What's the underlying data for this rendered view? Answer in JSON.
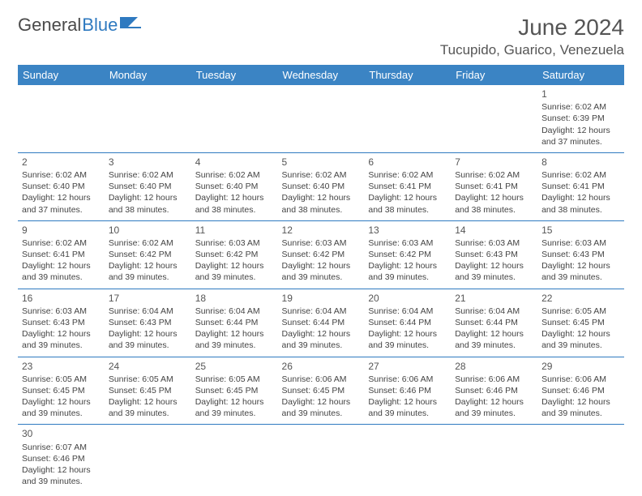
{
  "brand": {
    "name1": "General",
    "name2": "Blue"
  },
  "header": {
    "title": "June 2024",
    "location": "Tucupido, Guarico, Venezuela"
  },
  "colors": {
    "headerBg": "#3b84c4",
    "rule": "#2f7ac0",
    "text": "#444"
  },
  "daysOfWeek": [
    "Sunday",
    "Monday",
    "Tuesday",
    "Wednesday",
    "Thursday",
    "Friday",
    "Saturday"
  ],
  "startOffset": 6,
  "days": [
    {
      "n": 1,
      "sr": "6:02 AM",
      "ss": "6:39 PM",
      "dl": "12 hours and 37 minutes."
    },
    {
      "n": 2,
      "sr": "6:02 AM",
      "ss": "6:40 PM",
      "dl": "12 hours and 37 minutes."
    },
    {
      "n": 3,
      "sr": "6:02 AM",
      "ss": "6:40 PM",
      "dl": "12 hours and 38 minutes."
    },
    {
      "n": 4,
      "sr": "6:02 AM",
      "ss": "6:40 PM",
      "dl": "12 hours and 38 minutes."
    },
    {
      "n": 5,
      "sr": "6:02 AM",
      "ss": "6:40 PM",
      "dl": "12 hours and 38 minutes."
    },
    {
      "n": 6,
      "sr": "6:02 AM",
      "ss": "6:41 PM",
      "dl": "12 hours and 38 minutes."
    },
    {
      "n": 7,
      "sr": "6:02 AM",
      "ss": "6:41 PM",
      "dl": "12 hours and 38 minutes."
    },
    {
      "n": 8,
      "sr": "6:02 AM",
      "ss": "6:41 PM",
      "dl": "12 hours and 38 minutes."
    },
    {
      "n": 9,
      "sr": "6:02 AM",
      "ss": "6:41 PM",
      "dl": "12 hours and 39 minutes."
    },
    {
      "n": 10,
      "sr": "6:02 AM",
      "ss": "6:42 PM",
      "dl": "12 hours and 39 minutes."
    },
    {
      "n": 11,
      "sr": "6:03 AM",
      "ss": "6:42 PM",
      "dl": "12 hours and 39 minutes."
    },
    {
      "n": 12,
      "sr": "6:03 AM",
      "ss": "6:42 PM",
      "dl": "12 hours and 39 minutes."
    },
    {
      "n": 13,
      "sr": "6:03 AM",
      "ss": "6:42 PM",
      "dl": "12 hours and 39 minutes."
    },
    {
      "n": 14,
      "sr": "6:03 AM",
      "ss": "6:43 PM",
      "dl": "12 hours and 39 minutes."
    },
    {
      "n": 15,
      "sr": "6:03 AM",
      "ss": "6:43 PM",
      "dl": "12 hours and 39 minutes."
    },
    {
      "n": 16,
      "sr": "6:03 AM",
      "ss": "6:43 PM",
      "dl": "12 hours and 39 minutes."
    },
    {
      "n": 17,
      "sr": "6:04 AM",
      "ss": "6:43 PM",
      "dl": "12 hours and 39 minutes."
    },
    {
      "n": 18,
      "sr": "6:04 AM",
      "ss": "6:44 PM",
      "dl": "12 hours and 39 minutes."
    },
    {
      "n": 19,
      "sr": "6:04 AM",
      "ss": "6:44 PM",
      "dl": "12 hours and 39 minutes."
    },
    {
      "n": 20,
      "sr": "6:04 AM",
      "ss": "6:44 PM",
      "dl": "12 hours and 39 minutes."
    },
    {
      "n": 21,
      "sr": "6:04 AM",
      "ss": "6:44 PM",
      "dl": "12 hours and 39 minutes."
    },
    {
      "n": 22,
      "sr": "6:05 AM",
      "ss": "6:45 PM",
      "dl": "12 hours and 39 minutes."
    },
    {
      "n": 23,
      "sr": "6:05 AM",
      "ss": "6:45 PM",
      "dl": "12 hours and 39 minutes."
    },
    {
      "n": 24,
      "sr": "6:05 AM",
      "ss": "6:45 PM",
      "dl": "12 hours and 39 minutes."
    },
    {
      "n": 25,
      "sr": "6:05 AM",
      "ss": "6:45 PM",
      "dl": "12 hours and 39 minutes."
    },
    {
      "n": 26,
      "sr": "6:06 AM",
      "ss": "6:45 PM",
      "dl": "12 hours and 39 minutes."
    },
    {
      "n": 27,
      "sr": "6:06 AM",
      "ss": "6:46 PM",
      "dl": "12 hours and 39 minutes."
    },
    {
      "n": 28,
      "sr": "6:06 AM",
      "ss": "6:46 PM",
      "dl": "12 hours and 39 minutes."
    },
    {
      "n": 29,
      "sr": "6:06 AM",
      "ss": "6:46 PM",
      "dl": "12 hours and 39 minutes."
    },
    {
      "n": 30,
      "sr": "6:07 AM",
      "ss": "6:46 PM",
      "dl": "12 hours and 39 minutes."
    }
  ],
  "labels": {
    "sunrise": "Sunrise:",
    "sunset": "Sunset:",
    "daylight": "Daylight:"
  }
}
